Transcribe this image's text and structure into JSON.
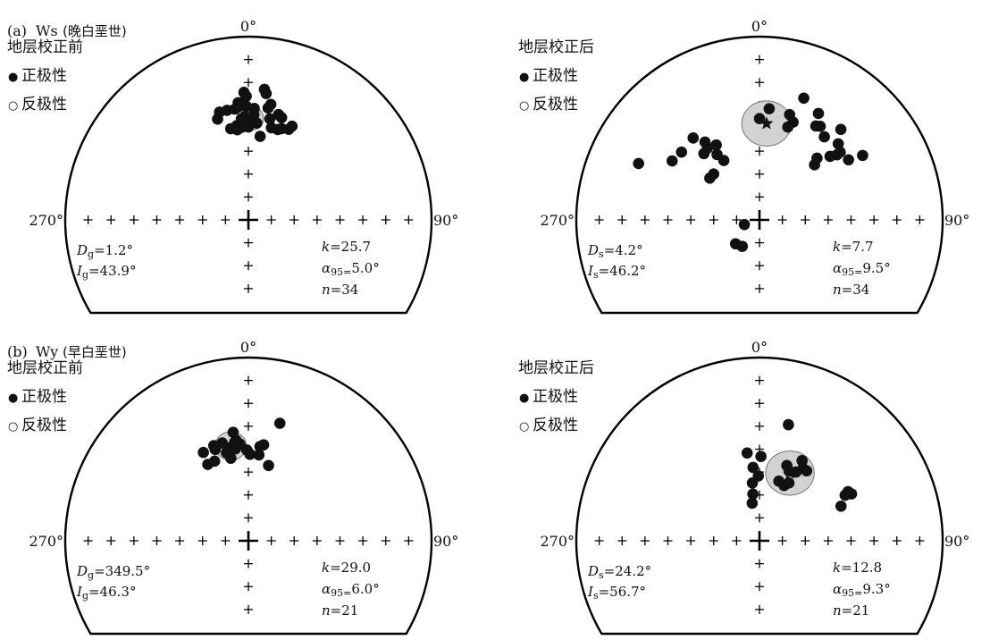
{
  "figure": {
    "panel_a": {
      "letter": "(a)",
      "site": "Ws",
      "epoch": "(晚白垩世)"
    },
    "panel_b": {
      "letter": "(b)",
      "site": "Wy",
      "epoch": "(早白垩世)"
    }
  },
  "legend": {
    "normal_symbol": "●",
    "normal": "正极性",
    "reverse_symbol": "○",
    "reverse": "反极性"
  },
  "chart_data": [
    {
      "type": "scatter",
      "projection": "equal-area upper hemisphere",
      "title": "地层校正前",
      "axis_labels": [
        "0°",
        "90°",
        "270°"
      ],
      "mean_direction": {
        "declination": 1.2,
        "inclination": 43.9
      },
      "stats_text": [
        "Dg=1.2°",
        "Ig=43.9°",
        "k=25.7",
        "α95=5.0°",
        "n=34"
      ],
      "k": 25.7,
      "a95": 5.0,
      "n": 34,
      "points": [
        [
          353,
          39
        ],
        [
          355,
          38
        ],
        [
          356,
          44
        ],
        [
          355,
          36
        ],
        [
          353,
          47
        ],
        [
          358,
          43
        ],
        [
          359,
          38
        ],
        [
          0,
          44
        ],
        [
          3,
          39
        ],
        [
          8,
          52
        ],
        [
          359,
          33
        ],
        [
          349,
          39
        ],
        [
          356,
          48
        ],
        [
          0,
          48
        ],
        [
          3,
          42
        ],
        [
          5,
          46
        ],
        [
          10,
          38
        ],
        [
          12,
          43
        ],
        [
          14,
          47
        ],
        [
          18,
          47
        ],
        [
          20,
          46
        ],
        [
          18,
          41
        ],
        [
          24,
          45
        ],
        [
          25,
          43
        ],
        [
          11,
          36
        ],
        [
          7,
          29
        ],
        [
          8,
          31
        ],
        [
          16,
          40
        ],
        [
          357,
          36
        ],
        [
          358,
          31
        ],
        [
          349,
          48
        ],
        [
          353,
          49
        ],
        [
          343,
          42
        ],
        [
          345,
          39
        ]
      ]
    },
    {
      "type": "scatter",
      "projection": "equal-area upper hemisphere",
      "title": "地层校正后",
      "axis_labels": [
        "0°",
        "90°",
        "270°"
      ],
      "mean_direction": {
        "declination": 4.2,
        "inclination": 46.2
      },
      "stats_text": [
        "Ds=4.2°",
        "Is=46.2°",
        "k=7.7",
        "α95=9.5°",
        "n=34"
      ],
      "k": 7.7,
      "a95": 9.5,
      "n": 34,
      "points": [
        [
          20,
          30
        ],
        [
          16,
          40
        ],
        [
          5,
          39
        ],
        [
          0,
          44
        ],
        [
          17,
          46
        ],
        [
          19,
          43
        ],
        [
          38,
          42
        ],
        [
          42,
          34
        ],
        [
          50,
          44
        ],
        [
          50,
          42
        ],
        [
          48,
          47
        ],
        [
          43,
          52
        ],
        [
          46,
          40
        ],
        [
          29,
          34
        ],
        [
          31,
          40
        ],
        [
          33,
          39
        ],
        [
          58,
          34
        ],
        [
          45,
          55
        ],
        [
          56,
          41
        ],
        [
          327,
          55
        ],
        [
          329,
          59
        ],
        [
          325,
          47
        ],
        [
          320,
          51
        ],
        [
          330,
          51
        ],
        [
          324,
          50
        ],
        [
          321,
          42
        ],
        [
          304,
          42
        ],
        [
          311,
          43
        ],
        [
          315,
          61
        ],
        [
          310,
          61
        ],
        [
          295,
          28
        ],
        [
          225,
          75
        ],
        [
          213,
          76
        ],
        [
          253,
          83
        ]
      ]
    },
    {
      "type": "scatter",
      "projection": "equal-area upper hemisphere",
      "title": "地层校正前",
      "axis_labels": [
        "0°",
        "90°",
        "270°"
      ],
      "mean_direction": {
        "declination": 349.5,
        "inclination": 46.3
      },
      "stats_text": [
        "Dg=349.5°",
        "Ig=46.3°",
        "k=29.0",
        "α95=6.0°",
        "n=21"
      ],
      "k": 29.0,
      "a95": 6.0,
      "n": 21,
      "points": [
        [
          353,
          44
        ],
        [
          348,
          47
        ],
        [
          346,
          49
        ],
        [
          355,
          46
        ],
        [
          359,
          49
        ],
        [
          1,
          51
        ],
        [
          7,
          47
        ],
        [
          352,
          45
        ],
        [
          345,
          44
        ],
        [
          340,
          44
        ],
        [
          340,
          46
        ],
        [
          332,
          51
        ],
        [
          333,
          45
        ],
        [
          15,
          34
        ],
        [
          9,
          46
        ],
        [
          7,
          51
        ],
        [
          15,
          55
        ],
        [
          352,
          48
        ],
        [
          348,
          52
        ],
        [
          337,
          51
        ],
        [
          352,
          40
        ]
      ]
    },
    {
      "type": "scatter",
      "projection": "equal-area upper hemisphere",
      "title": "地层校正后",
      "axis_labels": [
        "0°",
        "90°",
        "270°"
      ],
      "mean_direction": {
        "declination": 24.2,
        "inclination": 56.7
      },
      "stats_text": [
        "Ds=24.2°",
        "Is=56.7°",
        "k=12.8",
        "α95=9.3°",
        "n=21"
      ],
      "k": 12.8,
      "a95": 9.3,
      "n": 21,
      "points": [
        [
          20,
          54
        ],
        [
          23,
          56
        ],
        [
          31,
          52
        ],
        [
          34,
          52
        ],
        [
          28,
          55
        ],
        [
          18,
          62
        ],
        [
          24,
          63
        ],
        [
          27,
          61
        ],
        [
          352,
          50
        ],
        [
          1,
          52
        ],
        [
          359,
          61
        ],
        [
          353,
          64
        ],
        [
          349,
          73
        ],
        [
          352,
          69
        ],
        [
          61,
          44
        ],
        [
          62,
          46
        ],
        [
          63,
          43
        ],
        [
          67,
          50
        ],
        [
          14,
          35
        ],
        [
          28,
          49
        ],
        [
          355,
          57
        ]
      ]
    }
  ]
}
